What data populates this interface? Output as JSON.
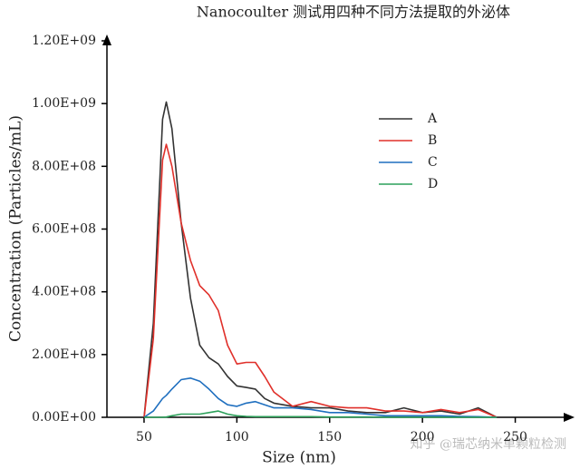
{
  "chart_data": {
    "type": "line",
    "title": "Nanocoulter 测试用四种不同方法提取的外泌体",
    "x_label": "Size (nm)",
    "y_label": "Concentration (Particles/mL)",
    "watermark": "知乎 @瑞芯纳米单颗粒检测",
    "x": [
      50,
      55,
      60,
      62,
      65,
      70,
      75,
      80,
      85,
      90,
      95,
      100,
      105,
      110,
      115,
      120,
      130,
      140,
      150,
      160,
      170,
      180,
      190,
      200,
      210,
      220,
      230,
      240
    ],
    "series": [
      {
        "name": "A",
        "color": "#333333",
        "values": [
          0,
          300000000.0,
          950000000.0,
          1005000000.0,
          920000000.0,
          620000000.0,
          380000000.0,
          230000000.0,
          190000000.0,
          170000000.0,
          130000000.0,
          100000000.0,
          95000000.0,
          90000000.0,
          60000000.0,
          45000000.0,
          35000000.0,
          30000000.0,
          30000000.0,
          20000000.0,
          15000000.0,
          15000000.0,
          30000000.0,
          15000000.0,
          20000000.0,
          10000000.0,
          30000000.0,
          0
        ]
      },
      {
        "name": "B",
        "color": "#e0302a",
        "values": [
          0,
          250000000.0,
          820000000.0,
          870000000.0,
          800000000.0,
          620000000.0,
          500000000.0,
          420000000.0,
          390000000.0,
          340000000.0,
          230000000.0,
          170000000.0,
          175000000.0,
          175000000.0,
          130000000.0,
          80000000.0,
          35000000.0,
          50000000.0,
          35000000.0,
          30000000.0,
          30000000.0,
          20000000.0,
          20000000.0,
          15000000.0,
          25000000.0,
          15000000.0,
          25000000.0,
          0
        ]
      },
      {
        "name": "C",
        "color": "#1f6fbf",
        "values": [
          0,
          20000000.0,
          60000000.0,
          70000000.0,
          90000000.0,
          120000000.0,
          125000000.0,
          115000000.0,
          90000000.0,
          60000000.0,
          40000000.0,
          35000000.0,
          45000000.0,
          50000000.0,
          40000000.0,
          30000000.0,
          30000000.0,
          25000000.0,
          15000000.0,
          15000000.0,
          10000000.0,
          5000000.0,
          5000000.0,
          5000000.0,
          5000000.0,
          3000000.0,
          2000000.0,
          0
        ]
      },
      {
        "name": "D",
        "color": "#2ca05a",
        "values": [
          0,
          0,
          0,
          1000000.0,
          5000000.0,
          10000000.0,
          10000000.0,
          10000000.0,
          15000000.0,
          20000000.0,
          10000000.0,
          5000000.0,
          3000000.0,
          2000000.0,
          2000000.0,
          2000000.0,
          2000000.0,
          2000000.0,
          1000000.0,
          1000000.0,
          1000000.0,
          0,
          0,
          0,
          0,
          0,
          0,
          0
        ]
      }
    ],
    "xlim": [
      30,
      280
    ],
    "xticks": [
      50,
      100,
      150,
      200,
      250
    ],
    "ylim": [
      0,
      1200000000.0
    ],
    "yticks": [
      {
        "value": 0,
        "label": "0.00E+00"
      },
      {
        "value": 200000000.0,
        "label": "2.00E+08"
      },
      {
        "value": 400000000.0,
        "label": "4.00E+08"
      },
      {
        "value": 600000000.0,
        "label": "6.00E+08"
      },
      {
        "value": 800000000.0,
        "label": "8.00E+08"
      },
      {
        "value": 1000000000.0,
        "label": "1.00E+09"
      },
      {
        "value": 1200000000.0,
        "label": "1.20E+09"
      }
    ],
    "legend": "right"
  }
}
